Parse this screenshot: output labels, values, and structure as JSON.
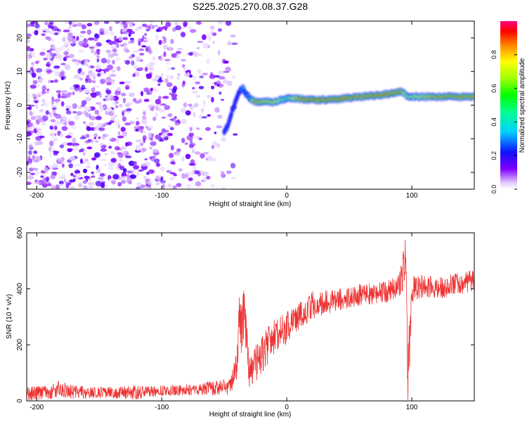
{
  "title": "S225.2025.270.08.37.G28",
  "chart_data": [
    {
      "type": "heatmap",
      "xlabel": "Height of straight line (km)",
      "ylabel": "Frequency (Hz)",
      "xlim": [
        -208,
        150
      ],
      "ylim": [
        -25,
        25
      ],
      "x_ticks": [
        -200,
        -100,
        0,
        100
      ],
      "y_ticks": [
        -20,
        -10,
        0,
        10,
        20
      ],
      "colorbar": {
        "label": "Normalized spectral amplitude",
        "range": [
          0.0,
          1.0
        ],
        "ticks": [
          0.0,
          0.2,
          0.4,
          0.6,
          0.8
        ]
      },
      "signal_track": {
        "x": [
          -50,
          -47,
          -44,
          -41,
          -38,
          -35,
          -32,
          -29,
          -26,
          -20,
          -10,
          0,
          10,
          20,
          40,
          60,
          75,
          85,
          92,
          95,
          100,
          120,
          150
        ],
        "freq": [
          -8,
          -6,
          -2,
          1,
          4,
          5,
          3,
          2,
          1,
          1,
          1,
          2,
          2,
          1.5,
          1.8,
          2.5,
          3,
          3.5,
          4,
          3,
          2.5,
          2.5,
          2.5
        ],
        "amplitude": [
          0.25,
          0.2,
          0.2,
          0.2,
          0.2,
          0.35,
          0.25,
          0.45,
          0.9,
          0.85,
          0.8,
          0.6,
          0.9,
          0.95,
          0.95,
          0.9,
          0.95,
          1.0,
          0.9,
          0.7,
          0.7,
          0.9,
          0.9
        ]
      },
      "noise_region": {
        "x_range": [
          -208,
          -40
        ],
        "freq_range": [
          -25,
          25
        ],
        "amplitude_range": [
          0.0,
          0.15
        ]
      }
    },
    {
      "type": "line",
      "xlabel": "Height of straight line (km)",
      "ylabel": "SNR (10 * v/v)",
      "xlim": [
        -208,
        150
      ],
      "ylim": [
        0,
        600
      ],
      "x_ticks": [
        -200,
        -100,
        0,
        100
      ],
      "y_ticks": [
        0,
        200,
        400,
        600
      ],
      "color": "#ee3333",
      "series": [
        {
          "name": "SNR",
          "x": [
            -208,
            -190,
            -180,
            -170,
            -150,
            -120,
            -100,
            -80,
            -60,
            -45,
            -40,
            -38,
            -36,
            -34,
            -32,
            -30,
            -25,
            -20,
            -15,
            -10,
            -5,
            0,
            10,
            20,
            40,
            60,
            80,
            90,
            95,
            97,
            100,
            110,
            120,
            130,
            140,
            150
          ],
          "y": [
            25,
            30,
            45,
            30,
            30,
            30,
            38,
            40,
            45,
            50,
            120,
            300,
            250,
            330,
            200,
            100,
            130,
            160,
            200,
            230,
            250,
            260,
            300,
            340,
            360,
            380,
            390,
            410,
            500,
            20,
            400,
            410,
            400,
            410,
            420,
            430
          ],
          "band": [
            25,
            25,
            30,
            25,
            20,
            25,
            20,
            20,
            25,
            30,
            60,
            80,
            100,
            90,
            80,
            60,
            70,
            70,
            70,
            60,
            60,
            60,
            50,
            50,
            40,
            40,
            40,
            40,
            100,
            200,
            50,
            40,
            40,
            40,
            40,
            40
          ]
        }
      ]
    }
  ]
}
